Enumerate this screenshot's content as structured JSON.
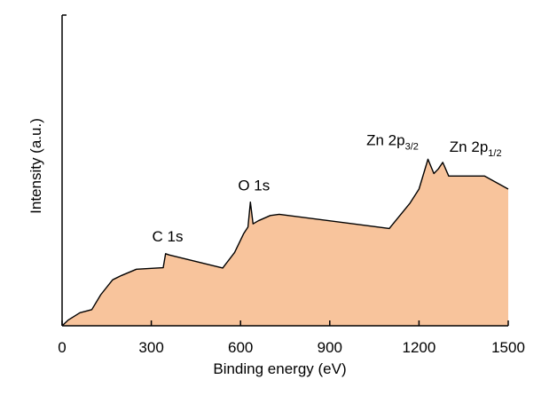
{
  "chart_data": {
    "type": "area",
    "xlabel": "Binding energy (eV)",
    "ylabel": "Intensity (a.u.)",
    "xlim": [
      0,
      1500
    ],
    "ylim": [
      0,
      1
    ],
    "x_ticks": [
      0,
      300,
      600,
      900,
      1200,
      1500
    ],
    "y_ticks_shown": false,
    "grid": false,
    "fill_color": "#f8c49c",
    "line_color": "#000000",
    "series": [
      {
        "x": [
          0,
          20,
          60,
          100,
          130,
          170,
          200,
          250,
          320,
          340,
          348,
          360,
          540,
          580,
          610,
          625,
          633,
          642,
          660,
          700,
          730,
          1100,
          1170,
          1200,
          1230,
          1250,
          1265,
          1280,
          1300,
          1420,
          1500
        ],
        "y": [
          0,
          0.018,
          0.042,
          0.052,
          0.1,
          0.148,
          0.162,
          0.182,
          0.186,
          0.187,
          0.232,
          0.228,
          0.186,
          0.236,
          0.296,
          0.318,
          0.398,
          0.328,
          0.338,
          0.355,
          0.359,
          0.313,
          0.395,
          0.44,
          0.536,
          0.49,
          0.505,
          0.526,
          0.482,
          0.482,
          0.44
        ]
      }
    ],
    "annotations": [
      {
        "id": "c1s",
        "text": "C 1s",
        "x": 343,
        "y": 0.232
      },
      {
        "id": "o1s",
        "text": "O 1s",
        "x": 633,
        "y": 0.398
      },
      {
        "id": "zn32",
        "base": "Zn 2p",
        "sub": "3/2",
        "x": 1230,
        "y": 0.536
      },
      {
        "id": "zn12",
        "base": "Zn 2p",
        "sub": "1/2",
        "x": 1280,
        "y": 0.526
      }
    ]
  }
}
